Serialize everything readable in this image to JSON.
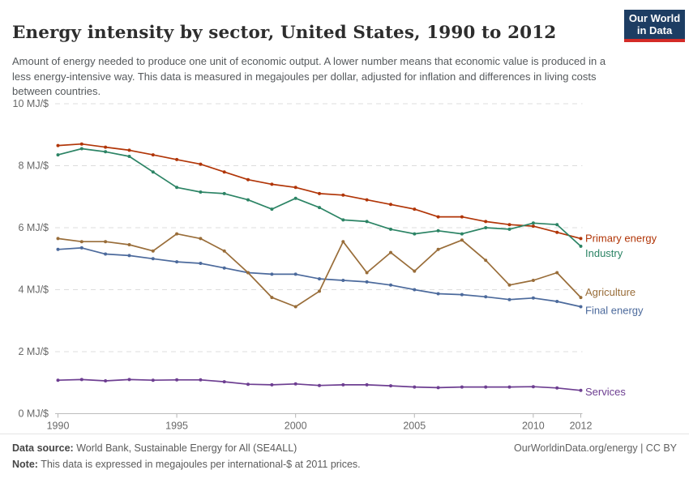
{
  "header": {
    "title": "Energy intensity by sector, United States, 1990 to 2012",
    "subtitle": "Amount of energy needed to produce one unit of economic output. A lower number means that economic value is produced in a less energy-intensive way. This data is measured in megajoules per dollar, adjusted for inflation and differences in living costs between countries.",
    "logo": {
      "line1": "Our World",
      "line2": "in Data",
      "bg_color": "#1d3d63",
      "accent_color": "#d42b27"
    }
  },
  "chart_data": {
    "type": "line",
    "title": "Energy intensity by sector, United States, 1990 to 2012",
    "unit": "MJ/$",
    "ylim": [
      0,
      10
    ],
    "grid": "horizontal-dashed",
    "legend_position": "right-of-line-ends",
    "x": [
      1990,
      1991,
      1992,
      1993,
      1994,
      1995,
      1996,
      1997,
      1998,
      1999,
      2000,
      2001,
      2002,
      2003,
      2004,
      2005,
      2006,
      2007,
      2008,
      2009,
      2010,
      2011,
      2012
    ],
    "x_tick_years": [
      1990,
      1995,
      2000,
      2005,
      2010,
      2012
    ],
    "x_tick_labels": [
      "1990",
      "1995",
      "2000",
      "2005",
      "2010",
      "2012"
    ],
    "y_tick_values": [
      0,
      2,
      4,
      6,
      8,
      10
    ],
    "y_tick_labels": [
      "0 MJ/$",
      "2 MJ/$",
      "4 MJ/$",
      "6 MJ/$",
      "8 MJ/$",
      "10 MJ/$"
    ],
    "series": [
      {
        "name": "Final energy",
        "color": "#4C6A9C",
        "values": [
          5.3,
          5.35,
          5.15,
          5.1,
          5.0,
          4.9,
          4.85,
          4.7,
          4.55,
          4.5,
          4.5,
          4.35,
          4.3,
          4.25,
          4.15,
          4.0,
          3.87,
          3.84,
          3.77,
          3.68,
          3.73,
          3.62,
          3.45
        ]
      },
      {
        "name": "Agriculture",
        "color": "#996D39",
        "values": [
          5.65,
          5.55,
          5.55,
          5.45,
          5.25,
          5.8,
          5.65,
          5.25,
          4.55,
          3.75,
          3.45,
          3.95,
          5.55,
          4.55,
          5.2,
          4.6,
          5.3,
          5.6,
          4.95,
          4.15,
          4.3,
          4.55,
          3.75
        ]
      },
      {
        "name": "Primary energy",
        "color": "#B13507",
        "values": [
          8.65,
          8.7,
          8.6,
          8.5,
          8.35,
          8.2,
          8.05,
          7.8,
          7.55,
          7.4,
          7.3,
          7.1,
          7.05,
          6.9,
          6.75,
          6.6,
          6.35,
          6.35,
          6.2,
          6.1,
          6.05,
          5.85,
          5.65
        ]
      },
      {
        "name": "Industry",
        "color": "#2C8465",
        "values": [
          8.35,
          8.55,
          8.45,
          8.3,
          7.8,
          7.3,
          7.15,
          7.1,
          6.9,
          6.6,
          6.95,
          6.65,
          6.25,
          6.2,
          5.95,
          5.8,
          5.9,
          5.8,
          6.0,
          5.95,
          6.15,
          6.1,
          5.4
        ]
      },
      {
        "name": "Services",
        "color": "#6D3E91",
        "values": [
          1.08,
          1.1,
          1.06,
          1.1,
          1.08,
          1.09,
          1.09,
          1.03,
          0.95,
          0.93,
          0.96,
          0.91,
          0.93,
          0.93,
          0.9,
          0.86,
          0.84,
          0.86,
          0.86,
          0.86,
          0.87,
          0.83,
          0.75
        ]
      }
    ]
  },
  "footer": {
    "datasource_label": "Data source:",
    "datasource_text": " World Bank, Sustainable Energy for All (SE4ALL)",
    "note_label": "Note:",
    "note_text": " This data is expressed in megajoules per international-$ at 2011 prices.",
    "link_text": "OurWorldinData.org/energy | CC BY"
  }
}
